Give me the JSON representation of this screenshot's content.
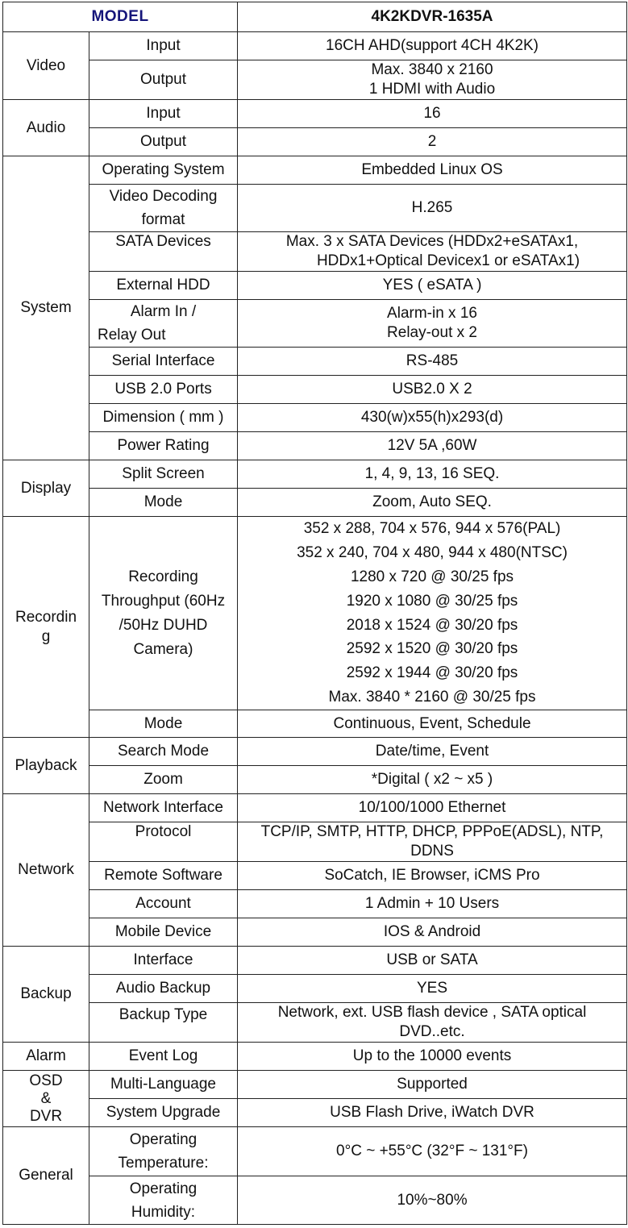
{
  "header": {
    "model_label": "MODEL",
    "model_name": "4K2KDVR-1635A"
  },
  "rows": {
    "video_cat": "Video",
    "video_input_label": "Input",
    "video_input_value": "16CH AHD(support 4CH 4K2K)",
    "video_output_label": "Output",
    "video_output_value_1": "Max. 3840 x 2160",
    "video_output_value_2": "1 HDMI with Audio",
    "audio_cat": "Audio",
    "audio_input_label": "Input",
    "audio_input_value": "16",
    "audio_output_label": "Output",
    "audio_output_value": "2",
    "system_cat": "System",
    "os_label": "Operating System",
    "os_value": "Embedded Linux OS",
    "decode_label_1": "Video Decoding",
    "decode_label_2": "format",
    "decode_value": "H.265",
    "sata_label": "SATA Devices",
    "sata_value_1": "Max. 3 x SATA Devices (HDDx2+eSATAx1,",
    "sata_value_2": "HDDx1+Optical Devicex1 or eSATAx1)",
    "exthdd_label": "External HDD",
    "exthdd_value": "YES ( eSATA )",
    "alarm_label_1": "Alarm In /",
    "alarm_label_2": "Relay Out",
    "alarm_value_1": "Alarm-in x 16",
    "alarm_value_2": "Relay-out x 2",
    "serial_label": "Serial Interface",
    "serial_value": "RS-485",
    "usb_label": "USB 2.0 Ports",
    "usb_value": "USB2.0 X 2",
    "dim_label": "Dimension ( mm )",
    "dim_value": "430(w)x55(h)x293(d)",
    "power_label": "Power Rating",
    "power_value": "12V 5A ,60W",
    "display_cat": "Display",
    "split_label": "Split Screen",
    "split_value": "1, 4, 9, 13, 16 SEQ.",
    "dmode_label": "Mode",
    "dmode_value": "Zoom, Auto SEQ.",
    "rec_cat_1": "Recordin",
    "rec_cat_2": "g",
    "rec_label_1": "Recording",
    "rec_label_2": "Throughput (60Hz",
    "rec_label_3": "/50Hz DUHD",
    "rec_label_4": "Camera)",
    "rec_values": [
      "352 x 288, 704 x 576, 944 x 576(PAL)",
      "352 x 240, 704 x 480, 944 x 480(NTSC)",
      "1280 x 720 @ 30/25 fps",
      "1920 x 1080 @ 30/25 fps",
      "2018 x 1524 @ 30/20 fps",
      "2592 x 1520 @ 30/20 fps",
      "2592 x 1944 @ 30/20 fps",
      "Max. 3840 * 2160 @ 30/25 fps"
    ],
    "rmode_label": "Mode",
    "rmode_value": "Continuous, Event, Schedule",
    "playback_cat": "Playback",
    "search_label": "Search Mode",
    "search_value": "Date/time, Event",
    "zoom_label": "Zoom",
    "zoom_value": "*Digital ( x2 ~ x5 )",
    "network_cat": "Network",
    "netif_label": "Network Interface",
    "netif_value": "10/100/1000 Ethernet",
    "proto_label": "Protocol",
    "proto_value_1": "TCP/IP, SMTP, HTTP, DHCP, PPPoE(ADSL), NTP,",
    "proto_value_2": "DDNS",
    "remote_label": "Remote Software",
    "remote_value": "SoCatch, IE Browser, iCMS Pro",
    "account_label": "Account",
    "account_value": "1 Admin + 10 Users",
    "mobile_label": "Mobile Device",
    "mobile_value": "IOS & Android",
    "backup_cat": "Backup",
    "binterface_label": "Interface",
    "binterface_value": "USB or SATA",
    "audiobk_label": "Audio Backup",
    "audiobk_value": "YES",
    "bktype_label": "Backup Type",
    "bktype_value_1": "Network, ext. USB flash device , SATA optical",
    "bktype_value_2": "DVD..etc.",
    "alarm_cat": "Alarm",
    "eventlog_label": "Event Log",
    "eventlog_value": "Up to the 10000 events",
    "osd_cat_1": "OSD",
    "osd_cat_2": "&",
    "osd_cat_3": "DVR",
    "lang_label": "Multi-Language",
    "lang_value": "Supported",
    "upgrade_label": "System Upgrade",
    "upgrade_value": "USB Flash Drive, iWatch DVR",
    "general_cat": "General",
    "temp_label_1": "Operating",
    "temp_label_2": "Temperature:",
    "temp_value": "0°C ~ +55°C (32°F ~ 131°F)",
    "hum_label_1": "Operating",
    "hum_label_2": "Humidity:",
    "hum_value": "10%~80%"
  }
}
